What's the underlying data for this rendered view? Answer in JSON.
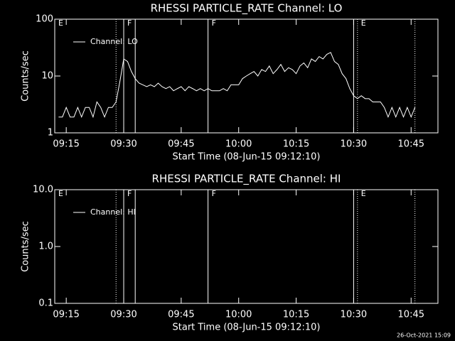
{
  "chart_data": [
    {
      "type": "line",
      "title": "RHESSI PARTICLE_RATE Channel: LO",
      "x_label": "Start Time (08-Jun-15 09:12:10)",
      "y_label": "Counts/sec",
      "log_y": true,
      "ylim": [
        1,
        100
      ],
      "yticks": [
        1,
        10,
        100
      ],
      "xlim": [
        "09:12",
        "10:52"
      ],
      "xticks": [
        "09:15",
        "09:30",
        "09:45",
        "10:00",
        "10:15",
        "10:30",
        "10:45"
      ],
      "x": [
        "09:13",
        "09:14",
        "09:15",
        "09:16",
        "09:17",
        "09:18",
        "09:19",
        "09:20",
        "09:21",
        "09:22",
        "09:23",
        "09:24",
        "09:25",
        "09:26",
        "09:27",
        "09:28",
        "09:29",
        "09:30",
        "09:31",
        "09:32",
        "09:33",
        "09:34",
        "09:35",
        "09:36",
        "09:37",
        "09:38",
        "09:39",
        "09:40",
        "09:41",
        "09:42",
        "09:43",
        "09:44",
        "09:45",
        "09:46",
        "09:47",
        "09:48",
        "09:49",
        "09:50",
        "09:51",
        "09:52",
        "09:53",
        "09:54",
        "09:55",
        "09:56",
        "09:57",
        "09:58",
        "09:59",
        "10:00",
        "10:01",
        "10:02",
        "10:03",
        "10:04",
        "10:05",
        "10:06",
        "10:07",
        "10:08",
        "10:09",
        "10:10",
        "10:11",
        "10:12",
        "10:13",
        "10:14",
        "10:15",
        "10:16",
        "10:17",
        "10:18",
        "10:19",
        "10:20",
        "10:21",
        "10:22",
        "10:23",
        "10:24",
        "10:25",
        "10:26",
        "10:27",
        "10:28",
        "10:29",
        "10:30",
        "10:31",
        "10:32",
        "10:33",
        "10:34",
        "10:35",
        "10:36",
        "10:37",
        "10:38",
        "10:39",
        "10:40",
        "10:41",
        "10:42",
        "10:43",
        "10:44",
        "10:45",
        "10:46"
      ],
      "series": [
        {
          "name": "Channel: LO",
          "color": "#ffffff",
          "values": [
            1.9,
            1.9,
            2.8,
            1.9,
            1.9,
            2.8,
            1.9,
            2.8,
            2.8,
            1.9,
            3.5,
            2.8,
            1.9,
            2.8,
            2.8,
            3.5,
            8,
            20,
            18,
            12,
            9,
            7.5,
            7,
            6.5,
            7,
            6.5,
            7.5,
            6.5,
            6,
            6.5,
            5.5,
            6,
            6.5,
            5.5,
            6.5,
            6,
            5.5,
            6,
            5.5,
            6,
            5.5,
            5.5,
            5.5,
            6,
            5.5,
            7,
            7,
            7,
            9,
            10,
            11,
            12,
            10,
            13,
            12,
            15,
            11,
            13,
            16,
            12,
            14,
            13,
            11,
            15,
            17,
            14,
            20,
            18,
            22,
            20,
            24,
            26,
            18,
            16,
            11,
            9,
            6,
            4.5,
            4,
            4.5,
            4,
            4,
            3.5,
            3.5,
            3.5,
            2.8,
            1.9,
            2.8,
            1.9,
            2.8,
            1.9,
            2.8,
            1.9,
            2.8
          ]
        }
      ],
      "events": [
        {
          "x": "09:28",
          "style": "dotted"
        },
        {
          "x": "09:30",
          "style": "solid"
        },
        {
          "x": "09:33",
          "style": "solid"
        },
        {
          "x": "09:52",
          "style": "solid"
        },
        {
          "x": "10:30",
          "style": "solid"
        },
        {
          "x": "10:31",
          "style": "dotted"
        },
        {
          "x": "10:46",
          "style": "dotted"
        }
      ],
      "event_labels": [
        {
          "x": "09:12",
          "text": "E"
        },
        {
          "x": "09:30",
          "text": "F"
        },
        {
          "x": "09:52",
          "text": "F"
        },
        {
          "x": "10:31",
          "text": "E"
        }
      ]
    },
    {
      "type": "line",
      "title": "RHESSI PARTICLE_RATE Channel: HI",
      "x_label": "Start Time (08-Jun-15 09:12:10)",
      "y_label": "Counts/sec",
      "log_y": true,
      "ylim": [
        0.1,
        10
      ],
      "yticks": [
        0.1,
        {
          "value": 1,
          "label": "1.0"
        },
        {
          "value": 10,
          "label": "10.0"
        }
      ],
      "xlim": [
        "09:12",
        "10:52"
      ],
      "xticks": [
        "09:15",
        "09:30",
        "09:45",
        "10:00",
        "10:15",
        "10:30",
        "10:45"
      ],
      "x": [],
      "series": [
        {
          "name": "Channel: HI",
          "color": "#ffffff",
          "values": []
        }
      ],
      "events": [
        {
          "x": "09:28",
          "style": "dotted"
        },
        {
          "x": "09:30",
          "style": "solid"
        },
        {
          "x": "09:33",
          "style": "solid"
        },
        {
          "x": "09:52",
          "style": "solid"
        },
        {
          "x": "10:30",
          "style": "solid"
        },
        {
          "x": "10:31",
          "style": "dotted"
        },
        {
          "x": "10:46",
          "style": "dotted"
        }
      ],
      "event_labels": [
        {
          "x": "09:12",
          "text": "E"
        },
        {
          "x": "09:30",
          "text": "F"
        },
        {
          "x": "09:52",
          "text": "F"
        },
        {
          "x": "10:31",
          "text": "E"
        }
      ]
    }
  ],
  "footer": "26-Oct-2021 15:09"
}
